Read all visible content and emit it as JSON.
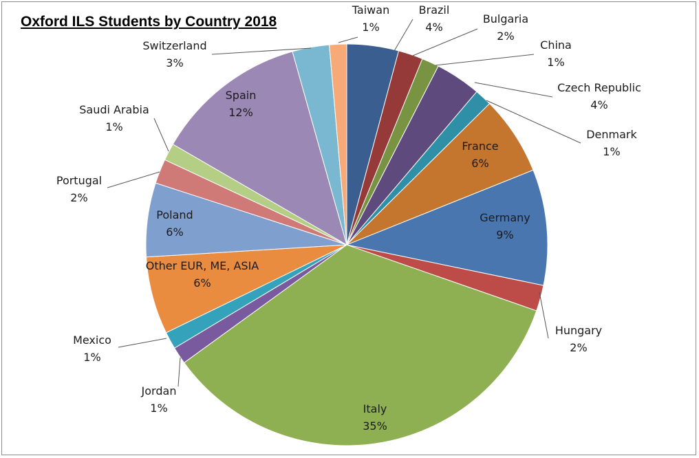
{
  "chart_data": {
    "type": "pie",
    "title": "Oxford ILS Students by Country 2018",
    "slices": [
      {
        "name": "Brazil",
        "label": "4%",
        "value": 4.2,
        "color": "#3b5e91"
      },
      {
        "name": "Bulgaria",
        "label": "2%",
        "value": 2.0,
        "color": "#953a38"
      },
      {
        "name": "China",
        "label": "1%",
        "value": 1.4,
        "color": "#789443"
      },
      {
        "name": "Czech Republic",
        "label": "4%",
        "value": 3.7,
        "color": "#5f4a7e"
      },
      {
        "name": "Denmark",
        "label": "1%",
        "value": 1.4,
        "color": "#2e8fa6"
      },
      {
        "name": "France",
        "label": "6%",
        "value": 6.4,
        "color": "#c4762f"
      },
      {
        "name": "Germany",
        "label": "9%",
        "value": 9.4,
        "color": "#4a76b0"
      },
      {
        "name": "Hungary",
        "label": "2%",
        "value": 2.1,
        "color": "#bd4b48"
      },
      {
        "name": "Italy",
        "label": "35%",
        "value": 35.0,
        "color": "#8fb052"
      },
      {
        "name": "Jordan",
        "label": "1%",
        "value": 1.4,
        "color": "#7a5a9e"
      },
      {
        "name": "Mexico",
        "label": "1%",
        "value": 1.4,
        "color": "#34a2ba"
      },
      {
        "name": "Other EUR, ME, ASIA",
        "label": "6%",
        "value": 6.3,
        "color": "#e98c40"
      },
      {
        "name": "Poland",
        "label": "6%",
        "value": 6.0,
        "color": "#7f9fcf"
      },
      {
        "name": "Portugal",
        "label": "2%",
        "value": 2.0,
        "color": "#d07a78"
      },
      {
        "name": "Saudi Arabia",
        "label": "1%",
        "value": 1.4,
        "color": "#b4cf85"
      },
      {
        "name": "Spain",
        "label": "12%",
        "value": 12.4,
        "color": "#9b88b4"
      },
      {
        "name": "Switzerland",
        "label": "3%",
        "value": 3.0,
        "color": "#79b8d0"
      },
      {
        "name": "Taiwan",
        "label": "1%",
        "value": 1.4,
        "color": "#f7a978"
      }
    ],
    "start_angle": "12 o'clock",
    "direction": "clockwise",
    "legend": "none",
    "data_labels": "category name and percentage"
  }
}
